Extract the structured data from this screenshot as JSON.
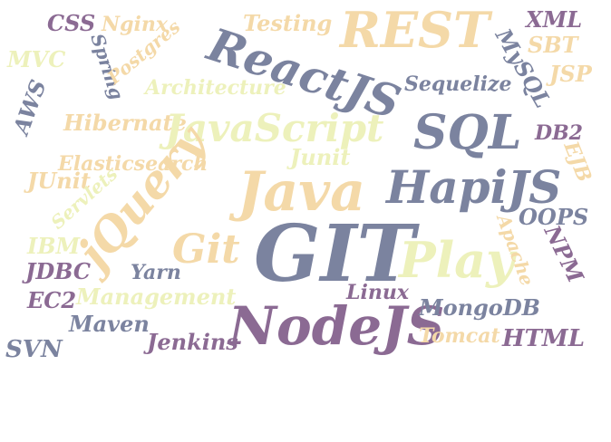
{
  "palette": {
    "slate": "#7b839f",
    "purple": "#8b6a93",
    "peach": "#f4d9a8",
    "lime": "#edf1bb"
  },
  "words": [
    {
      "text": "CSS",
      "color": "purple"
    },
    {
      "text": "Nginx",
      "color": "peach"
    },
    {
      "text": "Testing",
      "color": "peach"
    },
    {
      "text": "REST",
      "color": "peach"
    },
    {
      "text": "XML",
      "color": "purple"
    },
    {
      "text": "MVC",
      "color": "lime"
    },
    {
      "text": "Spring",
      "color": "slate"
    },
    {
      "text": "Postgres",
      "color": "peach"
    },
    {
      "text": "ReactJS",
      "color": "slate"
    },
    {
      "text": "MySQL",
      "color": "slate"
    },
    {
      "text": "SBT",
      "color": "peach"
    },
    {
      "text": "JSP",
      "color": "peach"
    },
    {
      "text": "AWS",
      "color": "slate"
    },
    {
      "text": "Architecture",
      "color": "lime"
    },
    {
      "text": "Sequelize",
      "color": "slate"
    },
    {
      "text": "Hibernate",
      "color": "peach"
    },
    {
      "text": "JavaScript",
      "color": "lime"
    },
    {
      "text": "SQL",
      "color": "slate"
    },
    {
      "text": "DB2",
      "color": "purple"
    },
    {
      "text": "Elasticsearch",
      "color": "peach"
    },
    {
      "text": "Junit",
      "color": "lime"
    },
    {
      "text": "EJB",
      "color": "peach"
    },
    {
      "text": "JUnit",
      "color": "peach"
    },
    {
      "text": "Servlets",
      "color": "lime"
    },
    {
      "text": "jQuery",
      "color": "peach"
    },
    {
      "text": "Java",
      "color": "peach"
    },
    {
      "text": "HapiJS",
      "color": "slate"
    },
    {
      "text": "OOPS",
      "color": "slate"
    },
    {
      "text": "IBM",
      "color": "lime"
    },
    {
      "text": "Git",
      "color": "peach"
    },
    {
      "text": "GIT",
      "color": "slate"
    },
    {
      "text": "Play",
      "color": "lime"
    },
    {
      "text": "Apache",
      "color": "peach"
    },
    {
      "text": "NPM",
      "color": "purple"
    },
    {
      "text": "JDBC",
      "color": "purple"
    },
    {
      "text": "Yarn",
      "color": "slate"
    },
    {
      "text": "EC2",
      "color": "purple"
    },
    {
      "text": "Management",
      "color": "lime"
    },
    {
      "text": "Linux",
      "color": "purple"
    },
    {
      "text": "NodeJS",
      "color": "purple"
    },
    {
      "text": "MongoDB",
      "color": "slate"
    },
    {
      "text": "Maven",
      "color": "slate"
    },
    {
      "text": "Jenkins",
      "color": "purple"
    },
    {
      "text": "Tomcat",
      "color": "peach"
    },
    {
      "text": "HTML",
      "color": "purple"
    },
    {
      "text": "SVN",
      "color": "slate"
    }
  ]
}
